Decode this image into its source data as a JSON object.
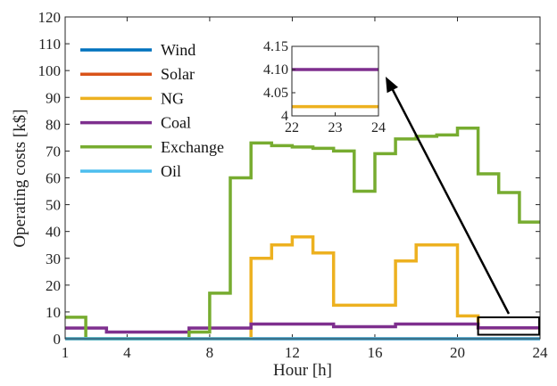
{
  "chart_data": {
    "type": "line",
    "step": true,
    "xlabel": "Hour [h]",
    "ylabel": "Operating costs [k$]",
    "xlim": [
      1,
      24
    ],
    "ylim": [
      0,
      120
    ],
    "x_ticks": [
      "1",
      "4",
      "8",
      "12",
      "16",
      "20",
      "24"
    ],
    "y_ticks": [
      "0",
      "10",
      "20",
      "30",
      "40",
      "50",
      "60",
      "70",
      "80",
      "90",
      "100",
      "110",
      "120"
    ],
    "grid": false,
    "legend_position": "top-left",
    "x": [
      1,
      2,
      3,
      4,
      5,
      6,
      7,
      8,
      9,
      10,
      11,
      12,
      13,
      14,
      15,
      16,
      17,
      18,
      19,
      20,
      21,
      22,
      23,
      24
    ],
    "series": [
      {
        "name": "Wind",
        "color": "#0072BD",
        "values": [
          0,
          0,
          0,
          0,
          0,
          0,
          0,
          0,
          0,
          0,
          0,
          0,
          0,
          0,
          0,
          0,
          0,
          0,
          0,
          0,
          0,
          0,
          0,
          0
        ]
      },
      {
        "name": "Solar",
        "color": "#D95319",
        "values": [
          0,
          0,
          0,
          0,
          0,
          0,
          0,
          0,
          0,
          0,
          0,
          0,
          0,
          0,
          0,
          0,
          0,
          0,
          0,
          0,
          0,
          0,
          0,
          0
        ]
      },
      {
        "name": "NG",
        "color": "#EDB120",
        "values": [
          0,
          0,
          0,
          0,
          0,
          0,
          0,
          0,
          0,
          30,
          35,
          38,
          32,
          12.5,
          12.5,
          12.5,
          29,
          35,
          35,
          8.5,
          4.02,
          4.02,
          4.02,
          4.02
        ]
      },
      {
        "name": "Coal",
        "color": "#7E2F8E",
        "values": [
          4,
          4,
          2.5,
          2.5,
          2.5,
          2.5,
          4,
          4,
          4,
          5.5,
          5.5,
          5.5,
          5.5,
          4.5,
          4.5,
          4.5,
          5.5,
          5.5,
          5.5,
          5.5,
          4.1,
          4.1,
          4.1,
          4.1
        ]
      },
      {
        "name": "Exchange",
        "color": "#77AC30",
        "values": [
          8,
          0,
          0,
          0,
          0,
          0,
          2.5,
          17,
          60,
          73,
          72,
          71.5,
          71,
          70,
          55,
          69,
          74.5,
          75.5,
          76,
          78.5,
          61.5,
          54.5,
          43.5,
          33
        ]
      },
      {
        "name": "Oil",
        "color": "#4DBEEE",
        "values": [
          0,
          0,
          0,
          0,
          0,
          0,
          0,
          0,
          0,
          0,
          0,
          0,
          0,
          0,
          0,
          0,
          0,
          0,
          0,
          0,
          0,
          0,
          0,
          0
        ]
      }
    ],
    "inset": {
      "xlim": [
        22,
        24
      ],
      "ylim": [
        4,
        4.15
      ],
      "x_ticks": [
        "22",
        "23",
        "24"
      ],
      "y_ticks": [
        "4",
        "4.05",
        "4.10",
        "4.15"
      ],
      "series": [
        {
          "name": "Coal",
          "color": "#7E2F8E",
          "x": [
            22,
            24
          ],
          "values": [
            4.1,
            4.1
          ]
        },
        {
          "name": "NG",
          "color": "#EDB120",
          "x": [
            22,
            24
          ],
          "values": [
            4.02,
            4.02
          ]
        }
      ],
      "zoom_box_xlim": [
        21,
        24
      ],
      "zoom_box_ylim": [
        1.5,
        8
      ]
    }
  }
}
